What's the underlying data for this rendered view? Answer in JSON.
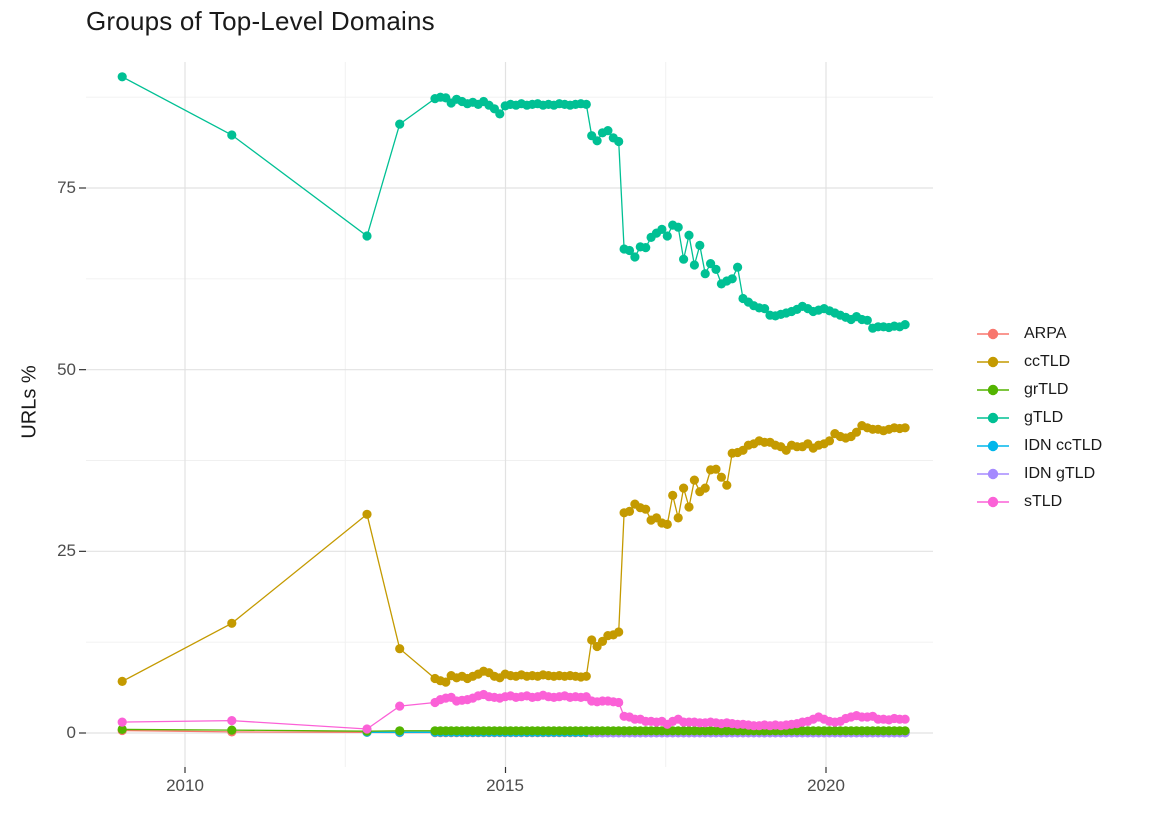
{
  "chart_data": {
    "type": "line-scatter",
    "title": "Groups of Top-Level Domains",
    "xlabel": "",
    "ylabel": "URLs %",
    "legend_position": "right",
    "grid": {
      "x_minor": [
        2012.5,
        2017.5
      ],
      "y_minor": [
        12.5,
        37.5,
        62.5,
        87.5
      ]
    },
    "xlim": [
      2008.45,
      2021.67
    ],
    "ylim": [
      -4.7,
      92.4
    ],
    "x_ticks": [
      {
        "label": "2010",
        "year": 2010
      },
      {
        "label": "2015",
        "year": 2015
      },
      {
        "label": "2020",
        "year": 2020
      }
    ],
    "y_ticks": [
      {
        "label": "0",
        "value": 0
      },
      {
        "label": "25",
        "value": 25
      },
      {
        "label": "50",
        "value": 50
      },
      {
        "label": "75",
        "value": 75
      }
    ],
    "sample_start": 2013.9,
    "sample_step": 0.0843,
    "draw_order": [
      0,
      4,
      5,
      2,
      1,
      3,
      6
    ],
    "series": [
      {
        "name": "ARPA",
        "color": "#F8766D",
        "early": [
          [
            2009.02,
            0.35
          ],
          [
            2010.73,
            0.15
          ],
          [
            2012.84,
            0.1
          ],
          [
            2013.35,
            0.05
          ]
        ],
        "dense_start": 0,
        "dense_count": 88,
        "dense_const": 0.05
      },
      {
        "name": "ccTLD",
        "color": "#C49A00",
        "early": [
          [
            2009.02,
            7.1
          ],
          [
            2010.73,
            15.1
          ],
          [
            2012.84,
            30.1
          ],
          [
            2013.35,
            11.6
          ]
        ],
        "dense_start": 0,
        "dense": [
          7.5,
          7.2,
          7.0,
          7.9,
          7.6,
          7.8,
          7.5,
          7.8,
          8.1,
          8.5,
          8.3,
          7.8,
          7.6,
          8.1,
          7.9,
          7.8,
          8.0,
          7.8,
          7.9,
          7.8,
          8.0,
          7.9,
          7.8,
          7.9,
          7.8,
          7.9,
          7.8,
          7.7,
          7.8,
          12.8,
          11.9,
          12.6,
          13.4,
          13.5,
          13.9,
          30.3,
          30.5,
          31.5,
          31.0,
          30.8,
          29.3,
          29.6,
          28.9,
          28.7,
          32.7,
          29.6,
          33.7,
          31.1,
          34.8,
          33.2,
          33.7,
          36.2,
          36.3,
          35.2,
          34.1,
          38.5,
          38.6,
          38.9,
          39.6,
          39.8,
          40.2,
          40.0,
          40.0,
          39.6,
          39.4,
          38.9,
          39.6,
          39.4,
          39.4,
          39.8,
          39.2,
          39.6,
          39.8,
          40.2,
          41.2,
          40.8,
          40.6,
          40.8,
          41.4,
          42.3,
          42.0,
          41.8,
          41.8,
          41.6,
          41.8,
          42.0,
          41.9,
          42.0
        ]
      },
      {
        "name": "grTLD",
        "color": "#53B400",
        "early": [
          [
            2009.02,
            0.5
          ],
          [
            2010.73,
            0.4
          ],
          [
            2012.84,
            0.25
          ],
          [
            2013.35,
            0.3
          ]
        ],
        "dense_start": 0,
        "dense_count": 88,
        "dense_const": 0.3
      },
      {
        "name": "gTLD",
        "color": "#00C094",
        "early": [
          [
            2009.02,
            90.3
          ],
          [
            2010.73,
            82.3
          ],
          [
            2012.84,
            68.4
          ],
          [
            2013.35,
            83.8
          ]
        ],
        "dense_start": 0,
        "dense": [
          87.3,
          87.5,
          87.4,
          86.7,
          87.2,
          86.9,
          86.6,
          86.8,
          86.5,
          86.9,
          86.4,
          85.9,
          85.2,
          86.3,
          86.5,
          86.4,
          86.6,
          86.4,
          86.5,
          86.6,
          86.4,
          86.5,
          86.4,
          86.6,
          86.5,
          86.4,
          86.5,
          86.6,
          86.5,
          82.2,
          81.5,
          82.6,
          82.9,
          81.9,
          81.4,
          66.6,
          66.4,
          65.5,
          66.9,
          66.8,
          68.2,
          68.8,
          69.3,
          68.4,
          69.9,
          69.6,
          65.2,
          68.5,
          64.4,
          67.1,
          63.2,
          64.6,
          63.8,
          61.8,
          62.2,
          62.5,
          64.1,
          59.8,
          59.3,
          58.8,
          58.5,
          58.4,
          57.5,
          57.4,
          57.6,
          57.8,
          58.0,
          58.3,
          58.7,
          58.4,
          58.0,
          58.2,
          58.4,
          58.1,
          57.8,
          57.5,
          57.2,
          56.9,
          57.3,
          56.9,
          56.8,
          55.7,
          55.9,
          55.9,
          55.8,
          56.0,
          55.9,
          56.2
        ]
      },
      {
        "name": "IDN ccTLD",
        "color": "#00B6EB",
        "early": [
          [
            2012.84,
            0.1
          ],
          [
            2013.35,
            0.1
          ]
        ],
        "dense_start": 0,
        "dense_count": 88,
        "dense_const": 0.1
      },
      {
        "name": "IDN gTLD",
        "color": "#A58AFF",
        "early": [],
        "dense_start": 29,
        "dense_count": 59,
        "dense_const": 0.02
      },
      {
        "name": "sTLD",
        "color": "#FB61D7",
        "early": [
          [
            2009.02,
            1.5
          ],
          [
            2010.73,
            1.7
          ],
          [
            2012.84,
            0.55
          ],
          [
            2013.35,
            3.7
          ]
        ],
        "dense_start": 0,
        "dense": [
          4.2,
          4.6,
          4.8,
          4.9,
          4.4,
          4.5,
          4.6,
          4.8,
          5.1,
          5.3,
          5.0,
          4.9,
          4.8,
          5.0,
          5.1,
          4.9,
          5.0,
          5.1,
          4.9,
          5.0,
          5.2,
          5.0,
          4.9,
          5.0,
          5.1,
          4.9,
          5.0,
          4.9,
          5.0,
          4.4,
          4.3,
          4.4,
          4.4,
          4.3,
          4.2,
          2.3,
          2.2,
          1.9,
          1.9,
          1.6,
          1.6,
          1.5,
          1.6,
          1.2,
          1.6,
          1.9,
          1.5,
          1.5,
          1.5,
          1.4,
          1.4,
          1.5,
          1.4,
          1.3,
          1.4,
          1.3,
          1.2,
          1.2,
          1.1,
          1.0,
          1.0,
          1.1,
          1.0,
          1.1,
          1.0,
          1.1,
          1.2,
          1.3,
          1.5,
          1.6,
          1.9,
          2.2,
          1.9,
          1.6,
          1.5,
          1.6,
          2.0,
          2.2,
          2.4,
          2.2,
          2.2,
          2.3,
          1.9,
          1.9,
          1.8,
          2.0,
          1.9,
          1.9
        ]
      }
    ]
  }
}
